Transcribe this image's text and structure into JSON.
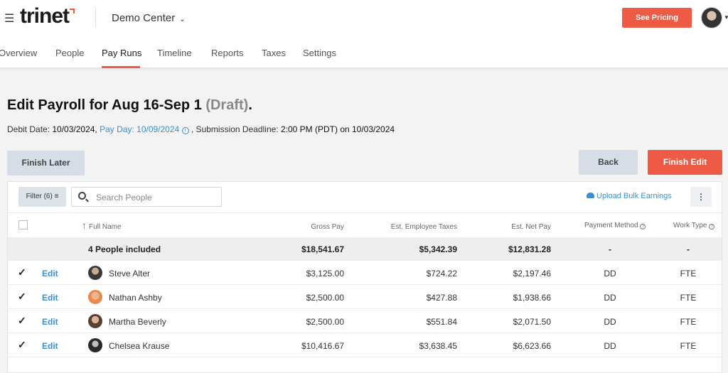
{
  "header": {
    "logo_text": "trinet",
    "company": "Demo Center",
    "see_pricing": "See Pricing",
    "colors": {
      "accent": "#ee5a43",
      "link": "#3b8fd0"
    }
  },
  "nav": {
    "tabs": [
      "Overview",
      "People",
      "Pay Runs",
      "Timeline",
      "Reports",
      "Taxes",
      "Settings"
    ],
    "active": "Pay Runs"
  },
  "page": {
    "title": "Edit Payroll for Aug 16-Sep 1",
    "title_status": "(Draft)",
    "title_period": ".",
    "debit_label": "Debit Date:",
    "debit_date": "10/03/2024,",
    "pay_day": "Pay Day: 10/09/2024",
    "deadline_label": ", Submission Deadline:",
    "deadline_value": "2:00 PM (PDT) on 10/03/2024"
  },
  "actions": {
    "finish_later": "Finish Later",
    "back": "Back",
    "finish_edit": "Finish Edit"
  },
  "table": {
    "filter_label": "Filter (6)",
    "search_placeholder": "Search People",
    "upload_label": "Upload Bulk Earnings",
    "kebab": "⋮",
    "headers": {
      "full_name": "Full Name",
      "gross_pay": "Gross Pay",
      "est_employee_taxes": "Est. Employee Taxes",
      "est_net_pay": "Est. Net Pay",
      "payment_method": "Payment Method",
      "work_type": "Work Type"
    },
    "summary": {
      "label": "4 People included",
      "gross_pay": "$18,541.67",
      "est_employee_taxes": "$5,342.39",
      "est_net_pay": "$12,831.28",
      "payment_method": "-",
      "work_type": "-"
    },
    "edit_label": "Edit",
    "rows": [
      {
        "name": "Steve Alter",
        "gross_pay": "$3,125.00",
        "est_employee_taxes": "$724.22",
        "est_net_pay": "$2,197.46",
        "payment_method": "DD",
        "work_type": "FTE",
        "checked": true
      },
      {
        "name": "Nathan Ashby",
        "gross_pay": "$2,500.00",
        "est_employee_taxes": "$427.88",
        "est_net_pay": "$1,938.66",
        "payment_method": "DD",
        "work_type": "FTE",
        "checked": true
      },
      {
        "name": "Martha Beverly",
        "gross_pay": "$2,500.00",
        "est_employee_taxes": "$551.84",
        "est_net_pay": "$2,071.50",
        "payment_method": "DD",
        "work_type": "FTE",
        "checked": true
      },
      {
        "name": "Chelsea Krause",
        "gross_pay": "$10,416.67",
        "est_employee_taxes": "$3,638.45",
        "est_net_pay": "$6,623.66",
        "payment_method": "DD",
        "work_type": "FTE",
        "checked": true
      }
    ]
  }
}
